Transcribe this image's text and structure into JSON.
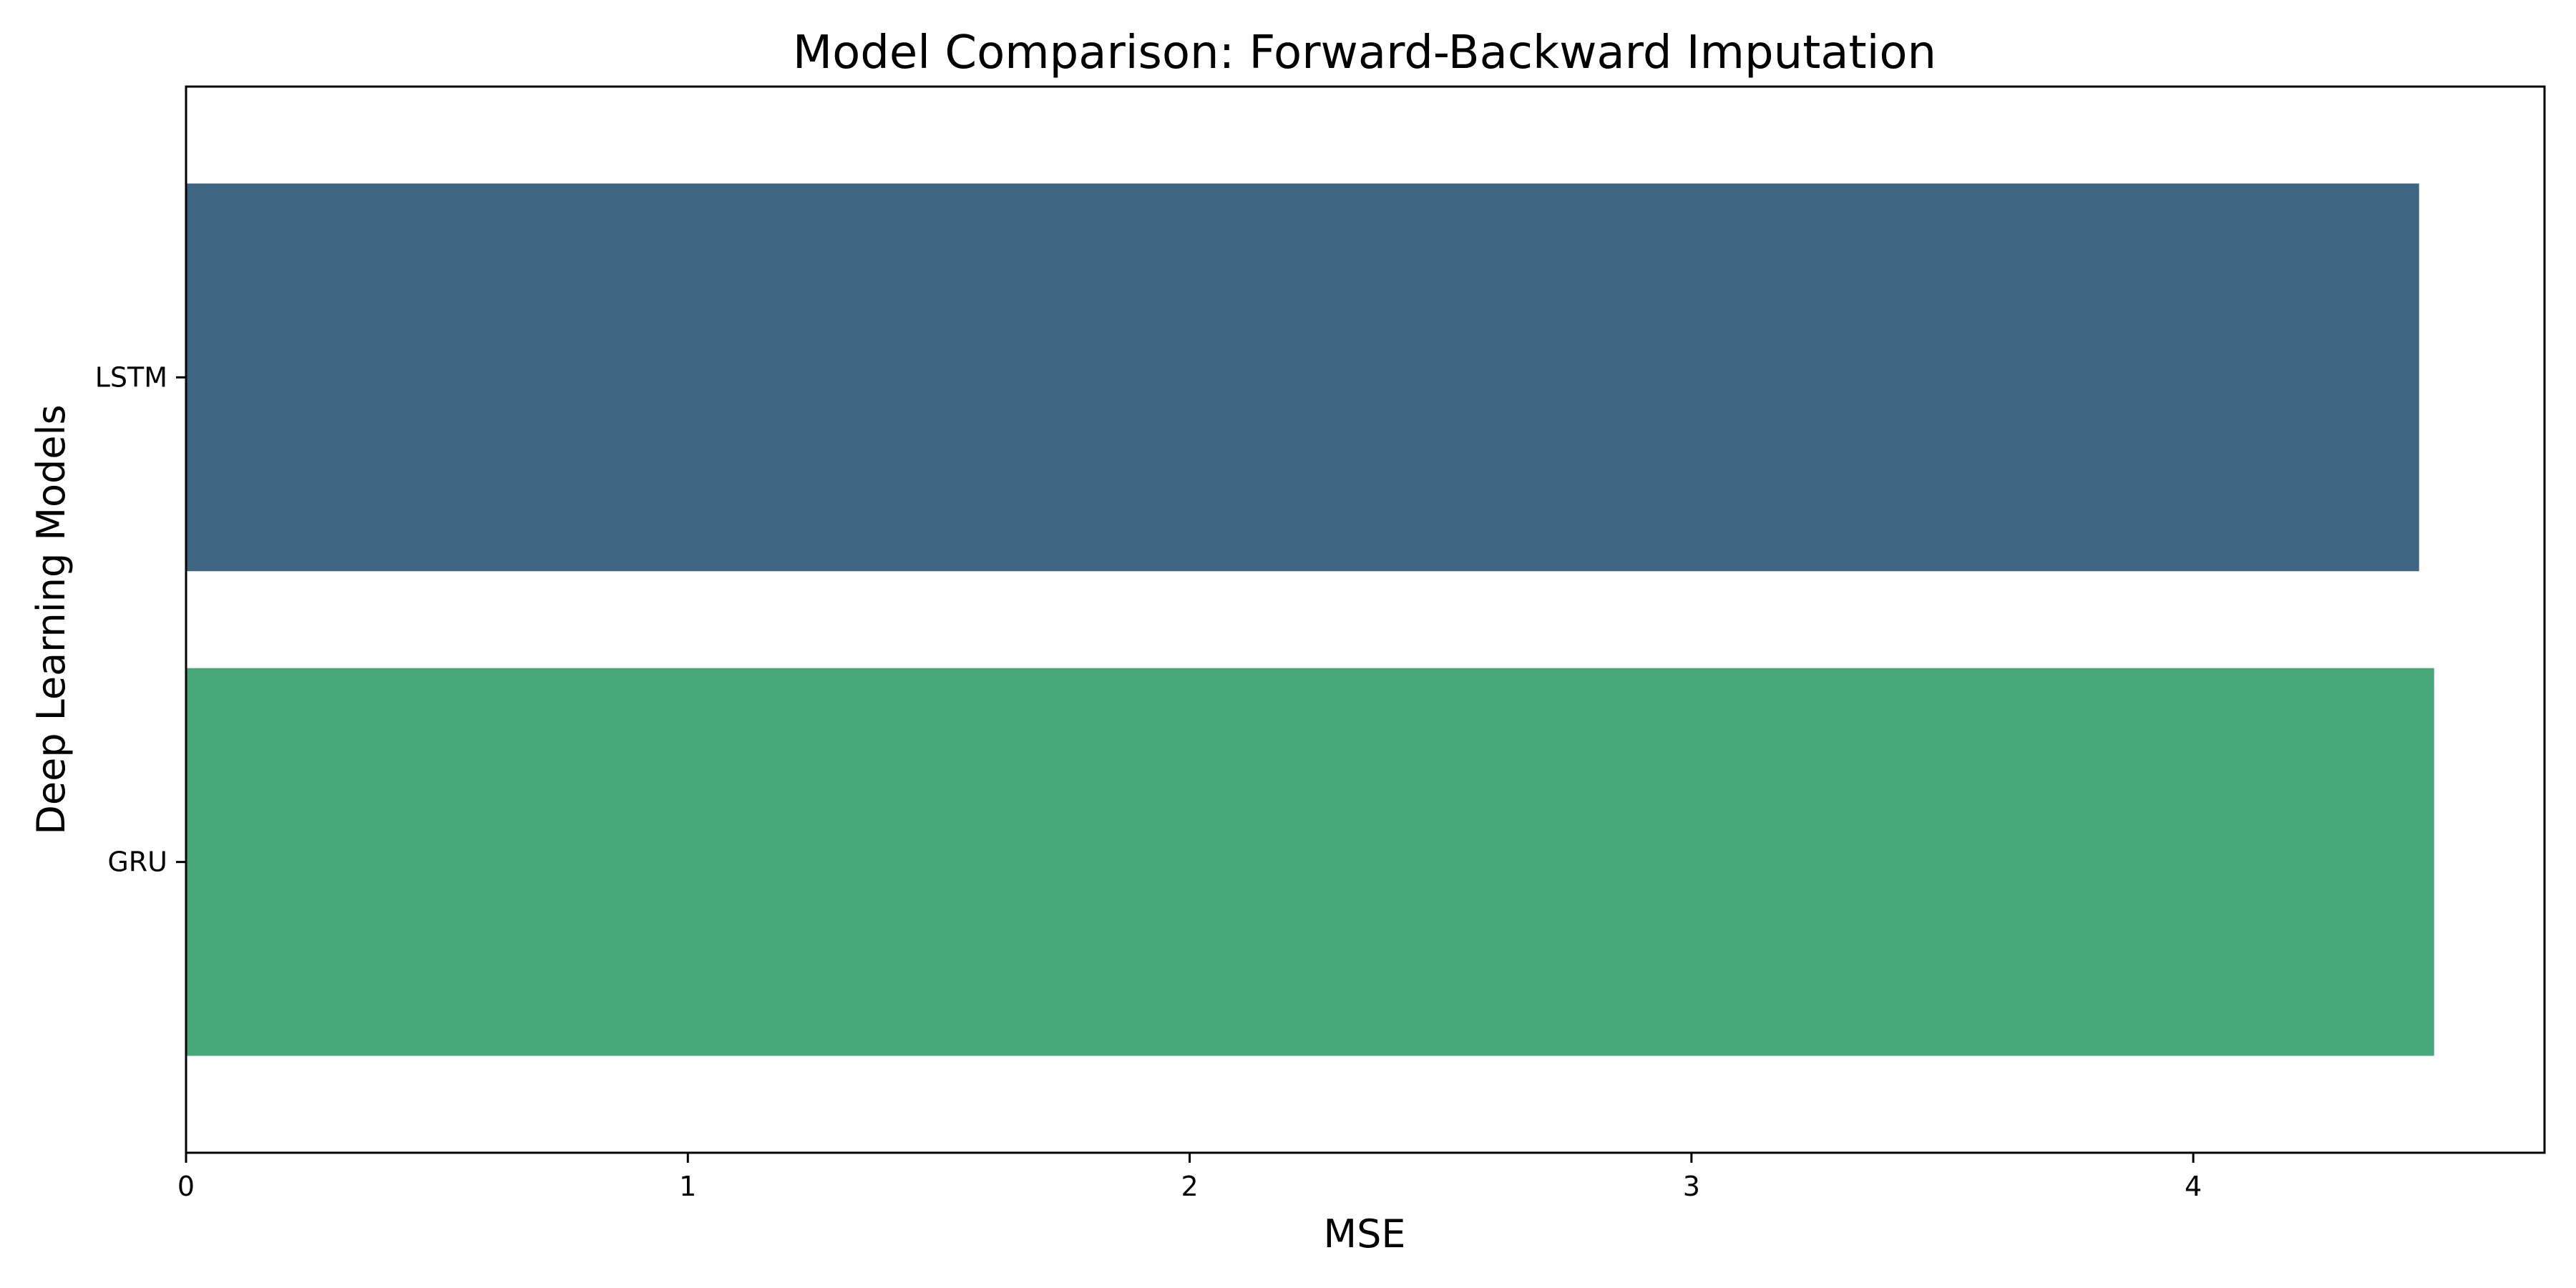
{
  "chart_data": {
    "type": "bar",
    "orientation": "horizontal",
    "title": "Model Comparison: Forward-Backward Imputation",
    "xlabel": "MSE",
    "ylabel": "Deep Learning Models",
    "categories": [
      "LSTM",
      "GRU"
    ],
    "values": [
      4.45,
      4.48
    ],
    "colors": [
      "#3e6683",
      "#46a778"
    ],
    "xlim": [
      0,
      4.7
    ],
    "xticks": [
      "0",
      "1",
      "2",
      "3",
      "4"
    ],
    "grid": false
  }
}
